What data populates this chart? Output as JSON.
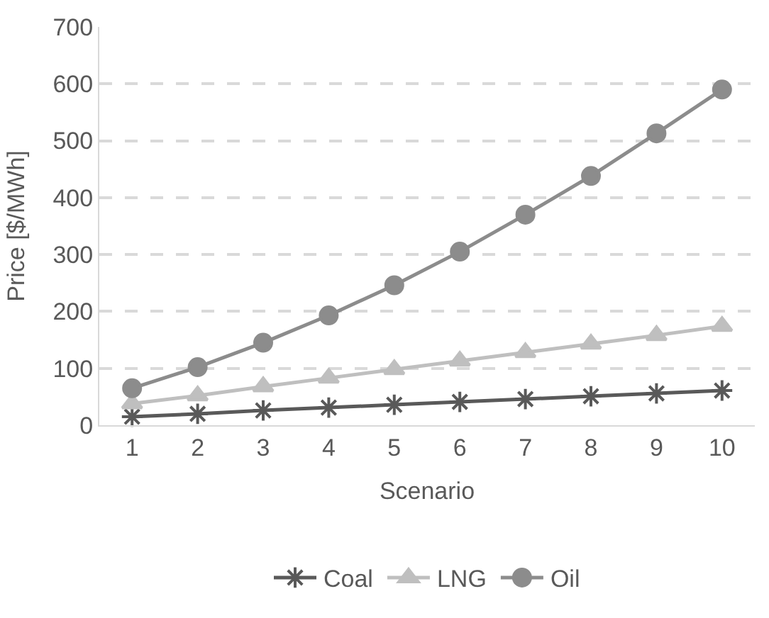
{
  "chart_data": {
    "type": "line",
    "xlabel": "Scenario",
    "ylabel": "Price [$/MWh]",
    "categories": [
      "1",
      "2",
      "3",
      "4",
      "5",
      "6",
      "7",
      "8",
      "9",
      "10"
    ],
    "series": [
      {
        "name": "Coal",
        "color": "#595959",
        "marker": "cross",
        "values": [
          15,
          20,
          26,
          31,
          36,
          41,
          46,
          51,
          56,
          61
        ]
      },
      {
        "name": "LNG",
        "color": "#bfbfbf",
        "marker": "triangle",
        "values": [
          38,
          52,
          68,
          83,
          98,
          113,
          128,
          143,
          158,
          174
        ]
      },
      {
        "name": "Oil",
        "color": "#8c8c8c",
        "marker": "circle",
        "values": [
          65,
          102,
          145,
          193,
          246,
          305,
          370,
          438,
          513,
          590
        ]
      }
    ],
    "ylim": [
      0,
      700
    ],
    "yticks": [
      0,
      100,
      200,
      300,
      400,
      500,
      600,
      700
    ],
    "grid": "y",
    "legend": "bottom"
  }
}
